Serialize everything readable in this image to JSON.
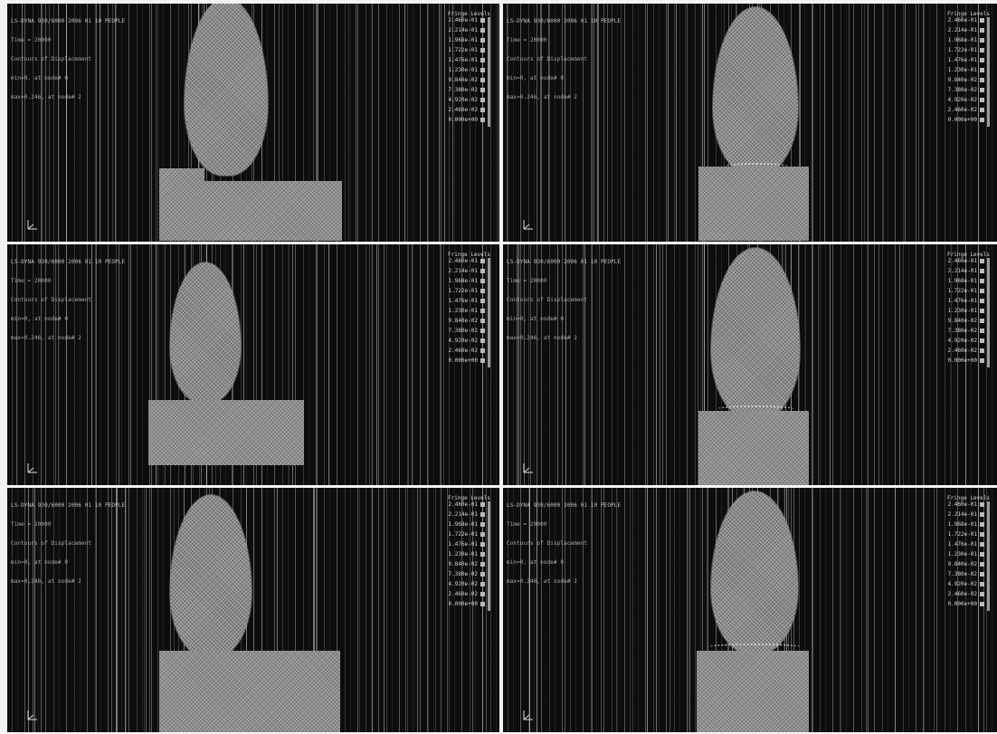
{
  "viewports": [
    {
      "id": "top-left",
      "info_lines": [
        "LS-DYNA 930/6000 2006 01 10 PEOPLE",
        "Time = 20000",
        "Contours of Displacement",
        "min=0, at node# 0",
        "max=0.246, at node# 2"
      ],
      "scale_title": "Fringe Levels",
      "scale_values": [
        "2.460e-01",
        "2.214e-01",
        "1.968e-01",
        "1.722e-01",
        "1.476e-01",
        "1.230e-01",
        "9.840e-02",
        "7.380e-02",
        "4.920e-02",
        "2.460e-02",
        "0.000e+00"
      ]
    },
    {
      "id": "top-right",
      "info_lines": [
        "LS-DYNA 930/6000 2006 01 10 PEOPLE",
        "Time = 20000",
        "Contours of Displacement",
        "min=0, at node# 0",
        "max=0.246, at node# 2"
      ],
      "scale_title": "Fringe Levels",
      "scale_values": [
        "2.460e-01",
        "2.214e-01",
        "1.968e-01",
        "1.722e-01",
        "1.476e-01",
        "1.230e-01",
        "9.840e-02",
        "7.380e-02",
        "4.920e-02",
        "2.460e-02",
        "0.000e+00"
      ]
    },
    {
      "id": "middle-left",
      "info_lines": [
        "LS-DYNA 930/6000 2006 01 10 PEOPLE",
        "Time = 20000",
        "Contours of Displacement",
        "min=0, at node# 0",
        "max=0.246, at node# 2"
      ],
      "scale_title": "Fringe Levels",
      "scale_values": [
        "2.460e-01",
        "2.214e-01",
        "1.968e-01",
        "1.722e-01",
        "1.476e-01",
        "1.230e-01",
        "9.840e-02",
        "7.380e-02",
        "4.920e-02",
        "2.460e-02",
        "0.000e+00"
      ]
    },
    {
      "id": "middle-right",
      "info_lines": [
        "LS-DYNA 930/6000 2006 01 10 PEOPLE",
        "Time = 20000",
        "Contours of Displacement",
        "min=0, at node# 0",
        "max=0.246, at node# 2"
      ],
      "scale_title": "Fringe Levels",
      "scale_values": [
        "2.460e-01",
        "2.214e-01",
        "1.968e-01",
        "1.722e-01",
        "1.476e-01",
        "1.230e-01",
        "9.840e-02",
        "7.380e-02",
        "4.920e-02",
        "2.460e-02",
        "0.000e+00"
      ]
    },
    {
      "id": "bottom-left",
      "info_lines": [
        "LS-DYNA 930/6000 2006 01 10 PEOPLE",
        "Time = 20000",
        "Contours of Displacement",
        "min=0, at node# 0",
        "max=0.246, at node# 2"
      ],
      "scale_title": "Fringe Levels",
      "scale_values": [
        "2.460e-01",
        "2.214e-01",
        "1.968e-01",
        "1.722e-01",
        "1.476e-01",
        "1.230e-01",
        "9.840e-02",
        "7.380e-02",
        "4.920e-02",
        "2.460e-02",
        "0.000e+00"
      ]
    },
    {
      "id": "bottom-right",
      "info_lines": [
        "LS-DYNA 930/6000 2006 01 10 PEOPLE",
        "Time = 20000",
        "Contours of Displacement",
        "min=0, at node# 0",
        "max=0.246, at node# 2"
      ],
      "scale_title": "Fringe Levels",
      "scale_values": [
        "2.460e-01",
        "2.214e-01",
        "1.968e-01",
        "1.722e-01",
        "1.476e-01",
        "1.230e-01",
        "9.840e-02",
        "7.380e-02",
        "4.920e-02",
        "2.460e-02",
        "0.000e+00"
      ]
    }
  ],
  "icons": {
    "axis_triad": "axis-triad-icon"
  },
  "colors": {
    "background": "#0d0d0d",
    "mesh_gray": "#8a8a8a",
    "text": "#cfcfcf",
    "separator": "#f4f4f4"
  }
}
